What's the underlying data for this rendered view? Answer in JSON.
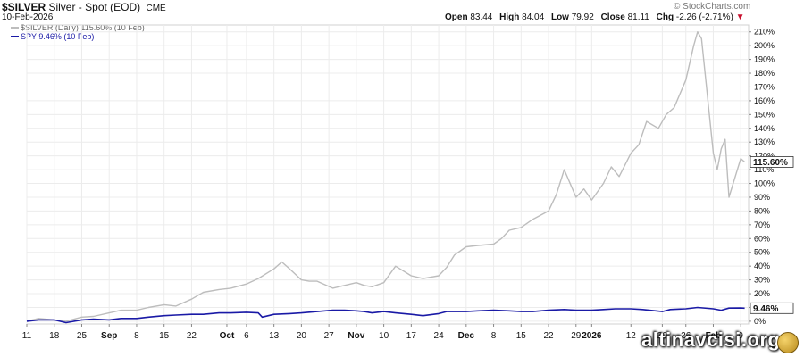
{
  "header": {
    "symbol": "$SILVER",
    "name": "Silver - Spot (EOD)",
    "exchange": "CME",
    "date": "10-Feb-2026",
    "brand": "© StockCharts.com",
    "open_label": "Open",
    "open": "83.44",
    "high_label": "High",
    "high": "84.04",
    "low_label": "Low",
    "low": "79.92",
    "close_label": "Close",
    "close": "81.11",
    "chg_label": "Chg",
    "chg": "-2.26 (-2.71%)",
    "chg_arrow": "▼"
  },
  "legend": [
    {
      "text": "$SILVER (Daily) 115.60% (10 Feb)",
      "color": "#bdbdbd"
    },
    {
      "text": "SPY 9.46% (10 Feb)",
      "color": "#1a1aa6"
    }
  ],
  "watermark": "altinavcisi.org",
  "chart_data": {
    "type": "line",
    "ylim": [
      -2,
      215
    ],
    "yticks": [
      0,
      10,
      20,
      30,
      40,
      50,
      60,
      70,
      80,
      90,
      100,
      110,
      120,
      130,
      140,
      150,
      160,
      170,
      180,
      190,
      200,
      210
    ],
    "ytick_labels": [
      "0%",
      "10%",
      "20%",
      "30%",
      "40%",
      "50%",
      "60%",
      "70%",
      "80%",
      "90%",
      "100%",
      "110%",
      "120%",
      "130%",
      "140%",
      "150%",
      "160%",
      "170%",
      "180%",
      "190%",
      "200%",
      "210%"
    ],
    "x_start": "2025-08-11",
    "xticks": [
      {
        "date": "2025-08-11",
        "label": "11",
        "bold": false
      },
      {
        "date": "2025-08-18",
        "label": "18",
        "bold": false
      },
      {
        "date": "2025-08-25",
        "label": "25",
        "bold": false
      },
      {
        "date": "2025-09-01",
        "label": "Sep",
        "bold": true
      },
      {
        "date": "2025-09-08",
        "label": "8",
        "bold": false
      },
      {
        "date": "2025-09-15",
        "label": "15",
        "bold": false
      },
      {
        "date": "2025-09-22",
        "label": "22",
        "bold": false
      },
      {
        "date": "2025-10-01",
        "label": "Oct",
        "bold": true
      },
      {
        "date": "2025-10-06",
        "label": "6",
        "bold": false
      },
      {
        "date": "2025-10-13",
        "label": "13",
        "bold": false
      },
      {
        "date": "2025-10-20",
        "label": "20",
        "bold": false
      },
      {
        "date": "2025-10-27",
        "label": "27",
        "bold": false
      },
      {
        "date": "2025-11-03",
        "label": "Nov",
        "bold": true
      },
      {
        "date": "2025-11-10",
        "label": "10",
        "bold": false
      },
      {
        "date": "2025-11-17",
        "label": "17",
        "bold": false
      },
      {
        "date": "2025-11-24",
        "label": "24",
        "bold": false
      },
      {
        "date": "2025-12-01",
        "label": "Dec",
        "bold": true
      },
      {
        "date": "2025-12-08",
        "label": "8",
        "bold": false
      },
      {
        "date": "2025-12-15",
        "label": "15",
        "bold": false
      },
      {
        "date": "2025-12-22",
        "label": "22",
        "bold": false
      },
      {
        "date": "2025-12-29",
        "label": "29",
        "bold": false
      },
      {
        "date": "2026-01-02",
        "label": "2026",
        "bold": true
      },
      {
        "date": "2026-01-12",
        "label": "12",
        "bold": false
      },
      {
        "date": "2026-01-20",
        "label": "20",
        "bold": false
      },
      {
        "date": "2026-01-26",
        "label": "26",
        "bold": false
      },
      {
        "date": "2026-02-02",
        "label": "Feb",
        "bold": true
      },
      {
        "date": "2026-02-09",
        "label": "9",
        "bold": false
      }
    ],
    "grid": true,
    "series": [
      {
        "name": "$SILVER (Daily) 115.60% (10 Feb)",
        "color": "#bdbdbd",
        "end_label": "115.60%",
        "points": [
          [
            "2025-08-11",
            0
          ],
          [
            "2025-08-14",
            2
          ],
          [
            "2025-08-18",
            1
          ],
          [
            "2025-08-21",
            0
          ],
          [
            "2025-08-25",
            3
          ],
          [
            "2025-08-28",
            3.5
          ],
          [
            "2025-09-01",
            6
          ],
          [
            "2025-09-04",
            8
          ],
          [
            "2025-09-08",
            8
          ],
          [
            "2025-09-11",
            10
          ],
          [
            "2025-09-15",
            12
          ],
          [
            "2025-09-18",
            11
          ],
          [
            "2025-09-22",
            16
          ],
          [
            "2025-09-25",
            21
          ],
          [
            "2025-09-29",
            23
          ],
          [
            "2025-10-02",
            24
          ],
          [
            "2025-10-06",
            27
          ],
          [
            "2025-10-09",
            31
          ],
          [
            "2025-10-13",
            38
          ],
          [
            "2025-10-15",
            43
          ],
          [
            "2025-10-17",
            38
          ],
          [
            "2025-10-20",
            30
          ],
          [
            "2025-10-22",
            29
          ],
          [
            "2025-10-24",
            29
          ],
          [
            "2025-10-28",
            24
          ],
          [
            "2025-10-31",
            26
          ],
          [
            "2025-11-03",
            28
          ],
          [
            "2025-11-05",
            26
          ],
          [
            "2025-11-07",
            25
          ],
          [
            "2025-11-10",
            28
          ],
          [
            "2025-11-13",
            40
          ],
          [
            "2025-11-17",
            33
          ],
          [
            "2025-11-20",
            31
          ],
          [
            "2025-11-24",
            33
          ],
          [
            "2025-11-26",
            39
          ],
          [
            "2025-11-28",
            48
          ],
          [
            "2025-12-01",
            54
          ],
          [
            "2025-12-04",
            55
          ],
          [
            "2025-12-08",
            56
          ],
          [
            "2025-12-10",
            60
          ],
          [
            "2025-12-12",
            66
          ],
          [
            "2025-12-15",
            68
          ],
          [
            "2025-12-18",
            74
          ],
          [
            "2025-12-22",
            80
          ],
          [
            "2025-12-24",
            92
          ],
          [
            "2025-12-26",
            110
          ],
          [
            "2025-12-29",
            90
          ],
          [
            "2025-12-31",
            96
          ],
          [
            "2026-01-02",
            88
          ],
          [
            "2026-01-05",
            100
          ],
          [
            "2026-01-07",
            112
          ],
          [
            "2026-01-09",
            105
          ],
          [
            "2026-01-12",
            122
          ],
          [
            "2026-01-14",
            128
          ],
          [
            "2026-01-16",
            145
          ],
          [
            "2026-01-19",
            140
          ],
          [
            "2026-01-21",
            150
          ],
          [
            "2026-01-23",
            155
          ],
          [
            "2026-01-26",
            175
          ],
          [
            "2026-01-28",
            200
          ],
          [
            "2026-01-29",
            210
          ],
          [
            "2026-01-30",
            205
          ],
          [
            "2026-02-02",
            122
          ],
          [
            "2026-02-03",
            110
          ],
          [
            "2026-02-04",
            125
          ],
          [
            "2026-02-05",
            132
          ],
          [
            "2026-02-06",
            90
          ],
          [
            "2026-02-09",
            118
          ],
          [
            "2026-02-10",
            115.6
          ]
        ]
      },
      {
        "name": "SPY 9.46% (10 Feb)",
        "color": "#1a1aa6",
        "end_label": "9.46%",
        "points": [
          [
            "2025-08-11",
            0
          ],
          [
            "2025-08-14",
            1
          ],
          [
            "2025-08-18",
            1
          ],
          [
            "2025-08-21",
            -1
          ],
          [
            "2025-08-25",
            1
          ],
          [
            "2025-08-28",
            1.5
          ],
          [
            "2025-09-01",
            1
          ],
          [
            "2025-09-04",
            2
          ],
          [
            "2025-09-08",
            2
          ],
          [
            "2025-09-11",
            3
          ],
          [
            "2025-09-15",
            4
          ],
          [
            "2025-09-18",
            4.5
          ],
          [
            "2025-09-22",
            5
          ],
          [
            "2025-09-25",
            5
          ],
          [
            "2025-09-29",
            6
          ],
          [
            "2025-10-02",
            6
          ],
          [
            "2025-10-06",
            6.5
          ],
          [
            "2025-10-09",
            6
          ],
          [
            "2025-10-10",
            3
          ],
          [
            "2025-10-13",
            5
          ],
          [
            "2025-10-17",
            5.5
          ],
          [
            "2025-10-20",
            6
          ],
          [
            "2025-10-24",
            7
          ],
          [
            "2025-10-28",
            8
          ],
          [
            "2025-10-31",
            8
          ],
          [
            "2025-11-03",
            7.5
          ],
          [
            "2025-11-05",
            7
          ],
          [
            "2025-11-07",
            6
          ],
          [
            "2025-11-10",
            7
          ],
          [
            "2025-11-13",
            6
          ],
          [
            "2025-11-17",
            5
          ],
          [
            "2025-11-20",
            4
          ],
          [
            "2025-11-24",
            5.5
          ],
          [
            "2025-11-26",
            7
          ],
          [
            "2025-12-01",
            7
          ],
          [
            "2025-12-04",
            7.5
          ],
          [
            "2025-12-08",
            8
          ],
          [
            "2025-12-12",
            7.5
          ],
          [
            "2025-12-15",
            7
          ],
          [
            "2025-12-18",
            7
          ],
          [
            "2025-12-22",
            8
          ],
          [
            "2025-12-26",
            8.5
          ],
          [
            "2025-12-29",
            8
          ],
          [
            "2026-01-02",
            8
          ],
          [
            "2026-01-05",
            8.5
          ],
          [
            "2026-01-08",
            9
          ],
          [
            "2026-01-12",
            9
          ],
          [
            "2026-01-15",
            8.5
          ],
          [
            "2026-01-20",
            7
          ],
          [
            "2026-01-22",
            8.5
          ],
          [
            "2026-01-26",
            9
          ],
          [
            "2026-01-29",
            10
          ],
          [
            "2026-02-02",
            9
          ],
          [
            "2026-02-04",
            8
          ],
          [
            "2026-02-06",
            9.5
          ],
          [
            "2026-02-09",
            9.6
          ],
          [
            "2026-02-10",
            9.46
          ]
        ]
      }
    ]
  }
}
